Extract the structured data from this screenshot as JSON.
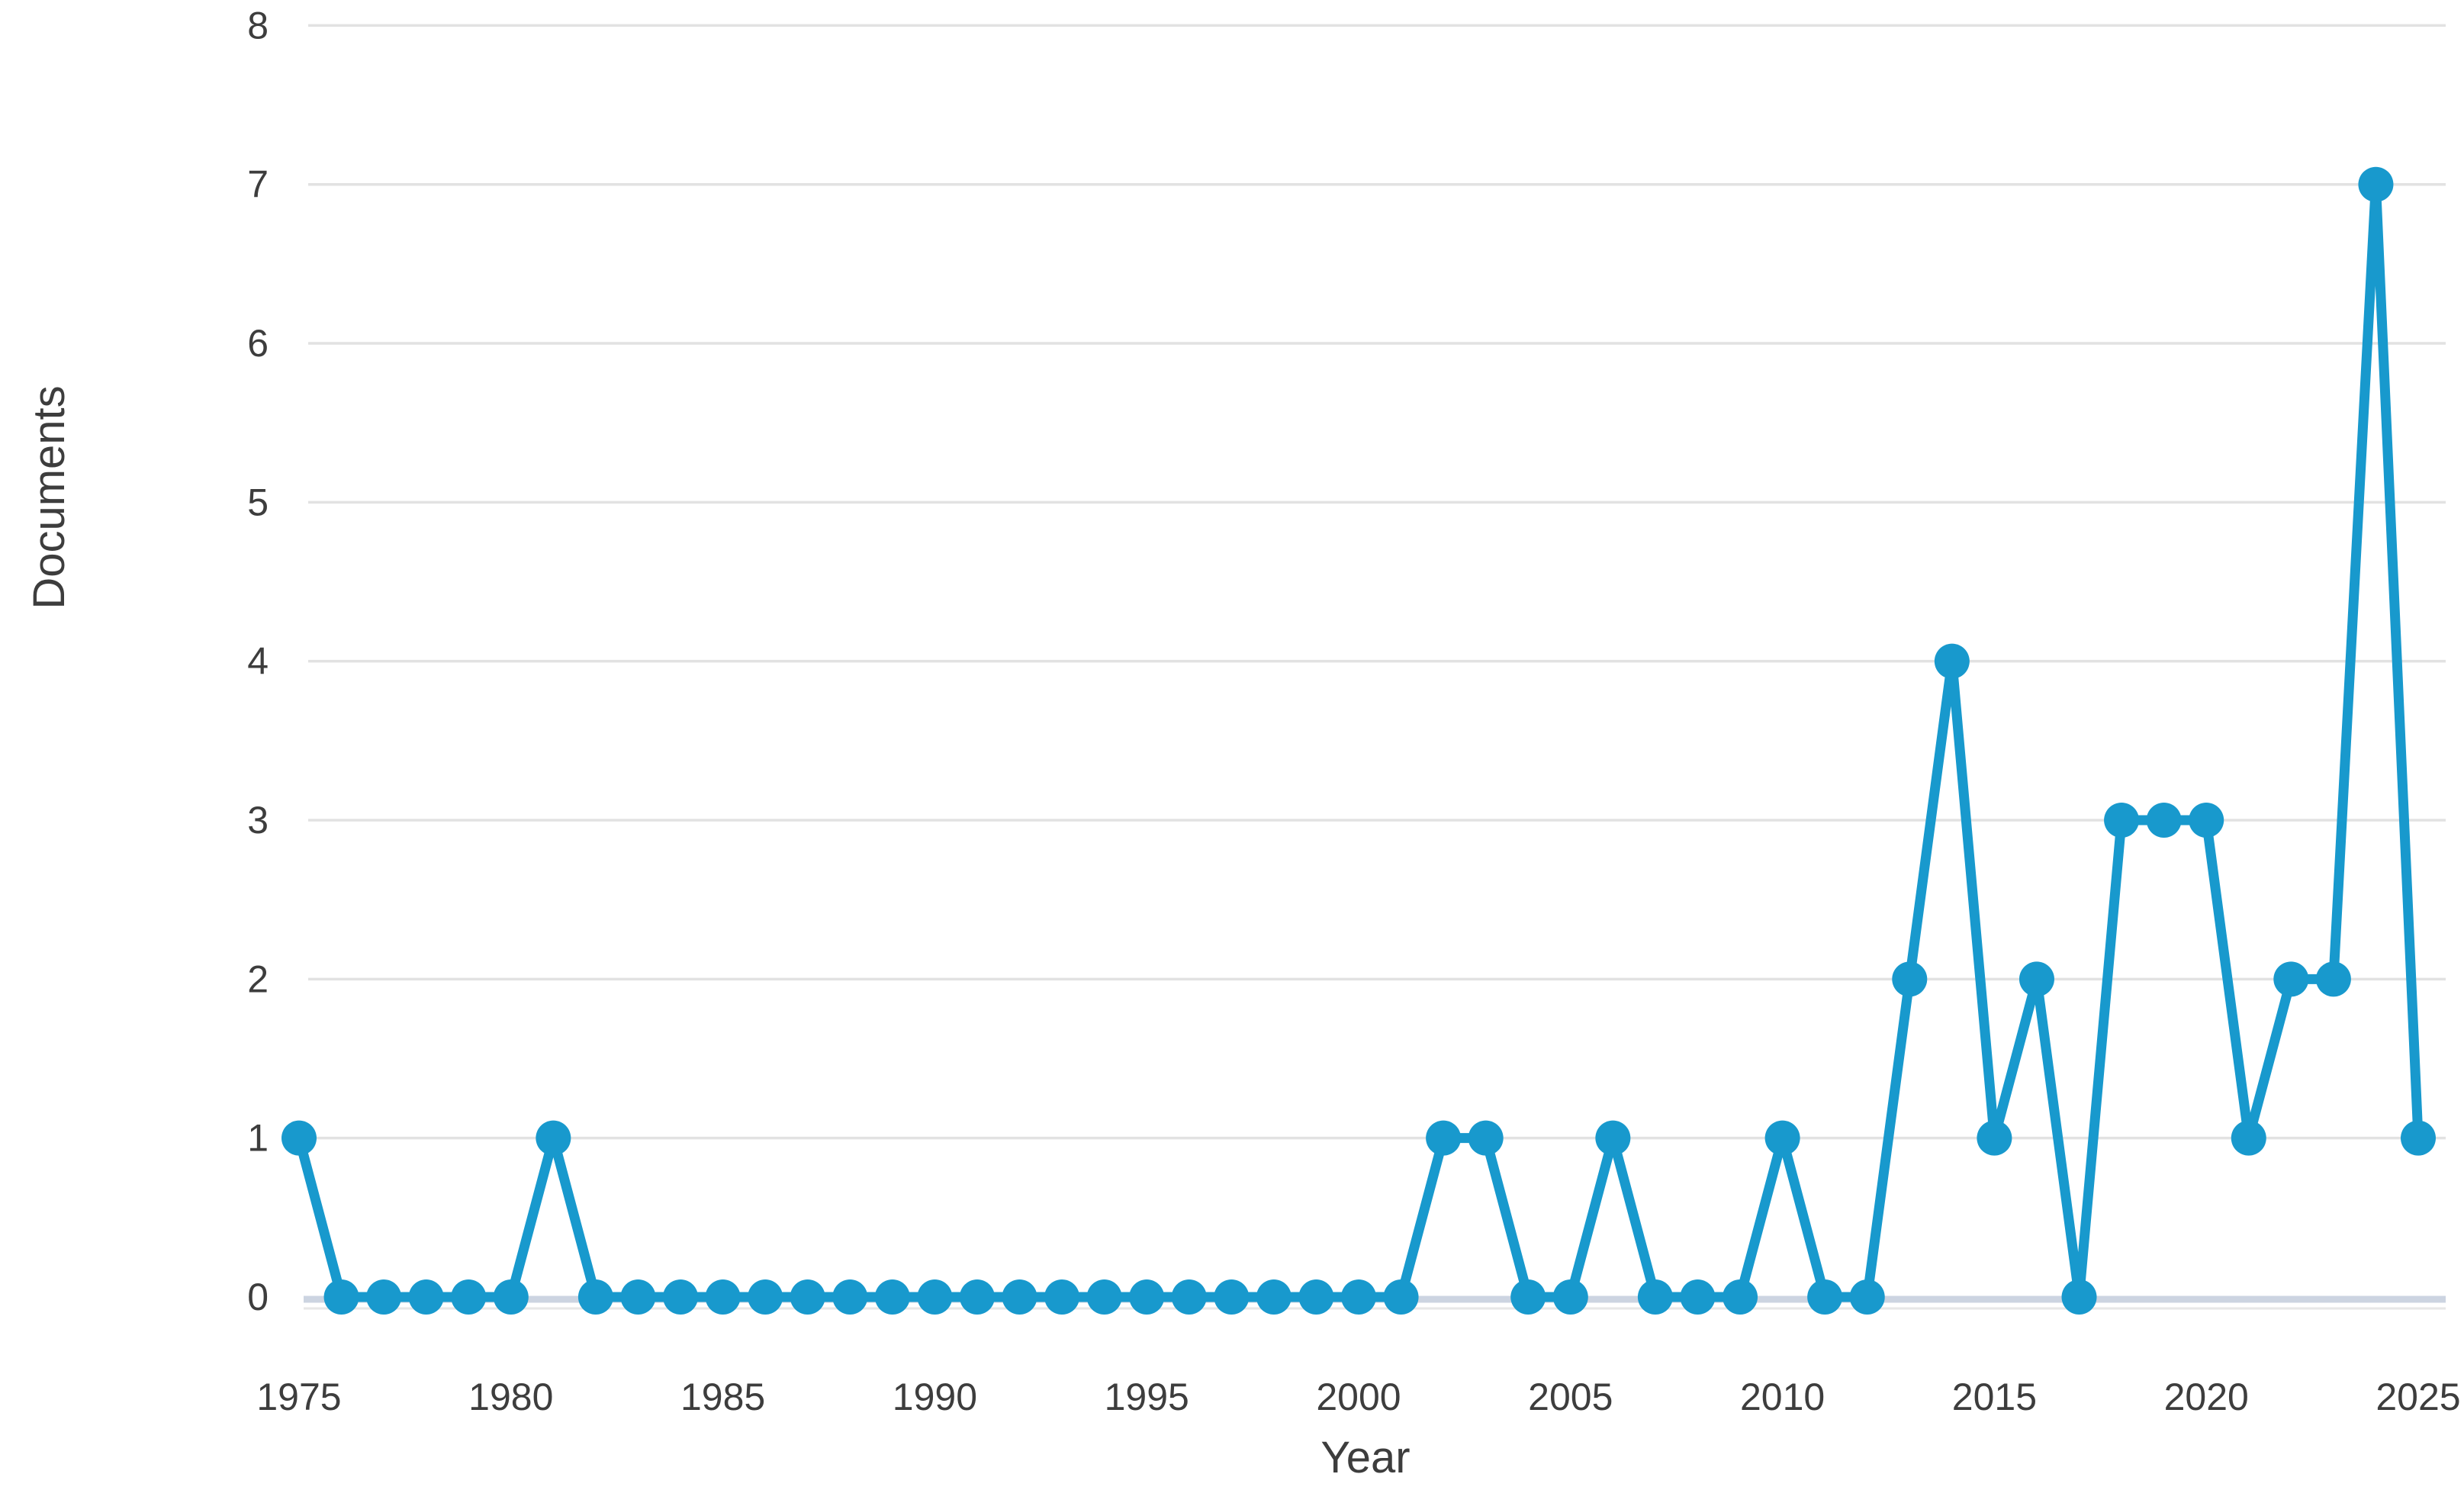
{
  "chart_data": {
    "type": "line",
    "title": "",
    "xlabel": "Year",
    "ylabel": "Documents",
    "series_name": "Documents",
    "years": [
      1975,
      1976,
      1977,
      1978,
      1979,
      1980,
      1981,
      1982,
      1983,
      1984,
      1985,
      1986,
      1987,
      1988,
      1989,
      1990,
      1991,
      1992,
      1993,
      1994,
      1995,
      1996,
      1997,
      1998,
      1999,
      2000,
      2001,
      2002,
      2003,
      2004,
      2005,
      2006,
      2007,
      2008,
      2009,
      2010,
      2011,
      2012,
      2013,
      2014,
      2015,
      2016,
      2017,
      2018,
      2019,
      2020,
      2021,
      2022,
      2023,
      2024,
      2025
    ],
    "values": [
      1,
      0,
      0,
      0,
      0,
      0,
      1,
      0,
      0,
      0,
      0,
      0,
      0,
      0,
      0,
      0,
      0,
      0,
      0,
      0,
      0,
      0,
      0,
      0,
      0,
      0,
      0,
      1,
      1,
      0,
      0,
      1,
      0,
      0,
      0,
      1,
      0,
      0,
      2,
      4,
      1,
      2,
      0,
      3,
      3,
      3,
      1,
      2,
      2,
      7,
      1
    ],
    "ylim": [
      0,
      8
    ],
    "yticks": [
      0,
      1,
      2,
      3,
      4,
      5,
      6,
      7,
      8
    ],
    "xticks": [
      1975,
      1980,
      1985,
      1990,
      1995,
      2000,
      2005,
      2010,
      2015,
      2020,
      2025
    ],
    "grid": "horizontal",
    "legend": "none"
  },
  "colors": {
    "line": "#1899cd",
    "point": "#1899cd",
    "gridline": "#e2e2e2",
    "axis_line": "#ccd4e1",
    "axis_line_shadow": "#e7e7e7",
    "text": "#3d3d3d",
    "background": "#ffffff"
  }
}
